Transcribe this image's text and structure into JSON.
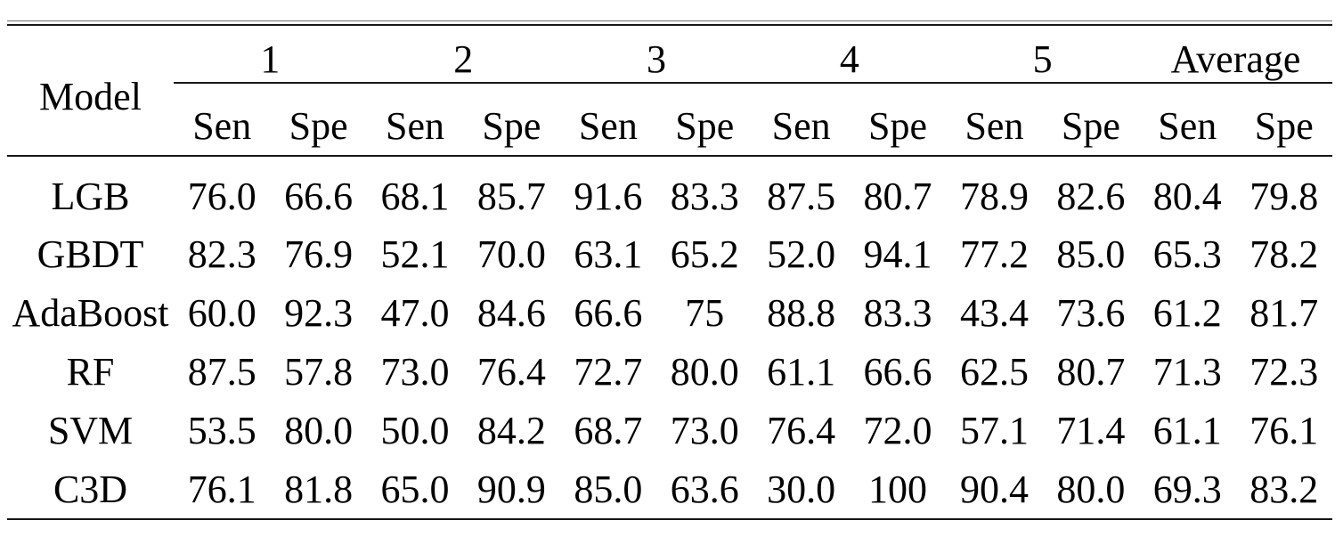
{
  "table": {
    "corner_label": "Model",
    "group_headers": [
      "1",
      "2",
      "3",
      "4",
      "5",
      "Average"
    ],
    "metric_headers": [
      "Sen",
      "Spe",
      "Sen",
      "Spe",
      "Sen",
      "Spe",
      "Sen",
      "Spe",
      "Sen",
      "Spe",
      "Sen",
      "Spe"
    ],
    "rows": [
      {
        "model": "LGB",
        "values": [
          "76.0",
          "66.6",
          "68.1",
          "85.7",
          "91.6",
          "83.3",
          "87.5",
          "80.7",
          "78.9",
          "82.6",
          "80.4",
          "79.8"
        ]
      },
      {
        "model": "GBDT",
        "values": [
          "82.3",
          "76.9",
          "52.1",
          "70.0",
          "63.1",
          "65.2",
          "52.0",
          "94.1",
          "77.2",
          "85.0",
          "65.3",
          "78.2"
        ]
      },
      {
        "model": "AdaBoost",
        "values": [
          "60.0",
          "92.3",
          "47.0",
          "84.6",
          "66.6",
          "75",
          "88.8",
          "83.3",
          "43.4",
          "73.6",
          "61.2",
          "81.7"
        ]
      },
      {
        "model": "RF",
        "values": [
          "87.5",
          "57.8",
          "73.0",
          "76.4",
          "72.7",
          "80.0",
          "61.1",
          "66.6",
          "62.5",
          "80.7",
          "71.3",
          "72.3"
        ]
      },
      {
        "model": "SVM",
        "values": [
          "53.5",
          "80.0",
          "50.0",
          "84.2",
          "68.7",
          "73.0",
          "76.4",
          "72.0",
          "57.1",
          "71.4",
          "61.1",
          "76.1"
        ]
      },
      {
        "model": "C3D",
        "values": [
          "76.1",
          "81.8",
          "65.0",
          "90.9",
          "85.0",
          "63.6",
          "30.0",
          "100",
          "90.4",
          "80.0",
          "69.3",
          "83.2"
        ]
      }
    ],
    "colors": {
      "background": "#ffffff",
      "text": "#000000",
      "rule": "#161616"
    }
  }
}
